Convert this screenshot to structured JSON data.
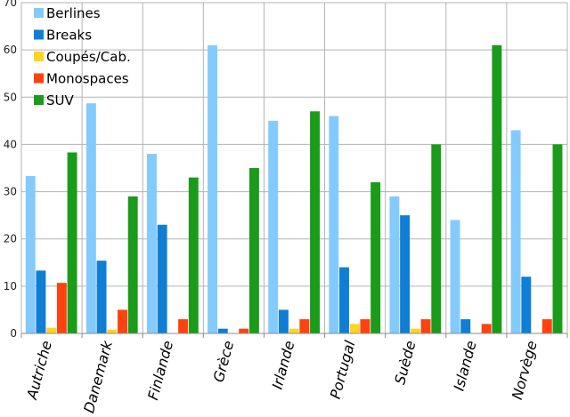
{
  "chart_data": {
    "type": "bar",
    "categories": [
      "Autriche",
      "Danemark",
      "Finlande",
      "Grèce",
      "Irlande",
      "Portugal",
      "Suède",
      "Islande",
      "Norvège"
    ],
    "series": [
      {
        "name": "Berlines",
        "color": "#83caff",
        "values": [
          33.3,
          48.7,
          38,
          61,
          45,
          46,
          29,
          24,
          43
        ]
      },
      {
        "name": "Breaks",
        "color": "#0f7ed4",
        "values": [
          13.3,
          15.4,
          23,
          1,
          5,
          14,
          25,
          3,
          12
        ]
      },
      {
        "name": "Coupés/Cab.",
        "color": "#ffd320",
        "values": [
          1.2,
          0.8,
          0,
          0,
          1,
          2,
          1,
          0,
          0
        ]
      },
      {
        "name": "Monospaces",
        "color": "#ff420e",
        "values": [
          10.7,
          5,
          3,
          1,
          3,
          3,
          3,
          2,
          3
        ]
      },
      {
        "name": "SUV",
        "color": "#1a9b1a",
        "values": [
          38.3,
          29,
          33,
          35,
          47,
          32,
          40,
          61,
          40
        ]
      }
    ],
    "ylim": [
      0,
      70
    ],
    "yticks": [
      "0",
      "10",
      "20",
      "30",
      "40",
      "50",
      "60",
      "70"
    ],
    "grid": true,
    "legend_position": "top-left",
    "title": "",
    "xlabel": "",
    "ylabel": ""
  }
}
